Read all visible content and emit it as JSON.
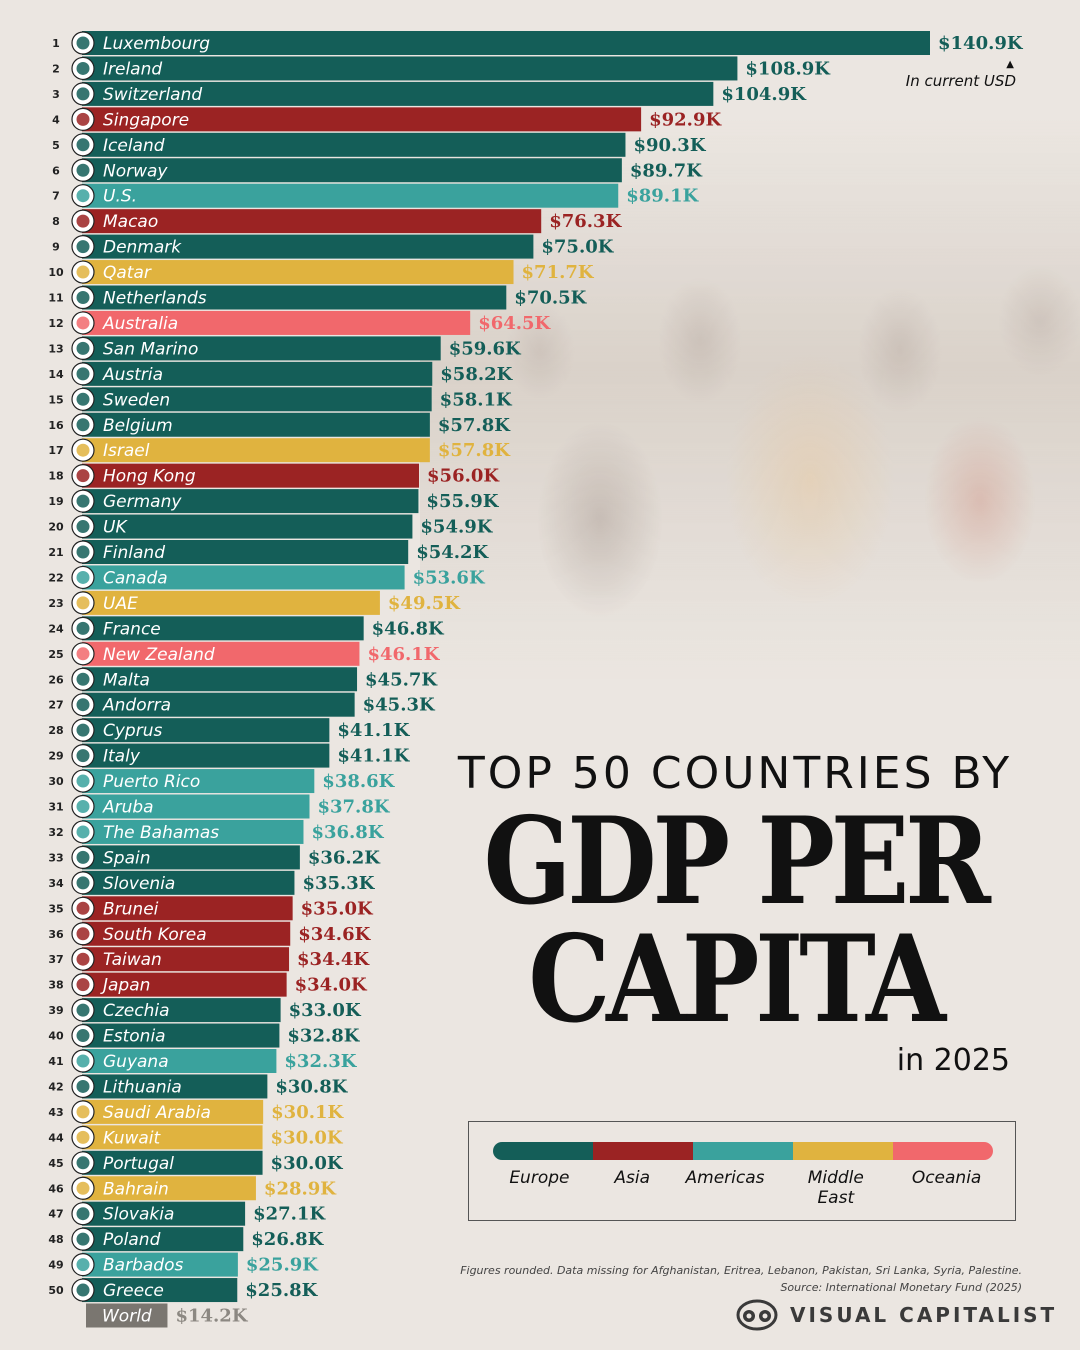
{
  "unit_note": "In current USD",
  "title": {
    "line1": "TOP 50 COUNTRIES BY",
    "line2": "GDP PER",
    "line3": "CAPITA",
    "year": "in 2025"
  },
  "legend": {
    "items": [
      {
        "label": "Europe",
        "color": "#145e58"
      },
      {
        "label": "Asia",
        "color": "#9b2323"
      },
      {
        "label": "Americas",
        "color": "#3aa29d"
      },
      {
        "label": "Middle East",
        "color": "#e0b33f"
      },
      {
        "label": "Oceania",
        "color": "#f1686c"
      }
    ]
  },
  "footnote": {
    "line1": "Figures rounded. Data missing for Afghanistan, Eritrea, Lebanon, Pakistan, Sri Lanka, Syria, Palestine.",
    "line2": "Source: International Monetary Fund (2025)"
  },
  "brand": "VISUAL CAPITALIST",
  "colors": {
    "Europe": "#145e58",
    "Asia": "#9b2323",
    "Americas": "#3aa29d",
    "Middle East": "#e0b33f",
    "Oceania": "#f1686c",
    "World": "#7a7670",
    "World_label": "#8c8882"
  },
  "chart_data": {
    "type": "bar",
    "orientation": "horizontal",
    "unit": "In current USD",
    "title": "TOP 50 COUNTRIES BY GDP PER CAPITA in 2025",
    "rows": [
      {
        "rank": "1",
        "name": "Luxembourg",
        "value": 140.9,
        "label": "$140.9K",
        "region": "Europe"
      },
      {
        "rank": "2",
        "name": "Ireland",
        "value": 108.9,
        "label": "$108.9K",
        "region": "Europe"
      },
      {
        "rank": "3",
        "name": "Switzerland",
        "value": 104.9,
        "label": "$104.9K",
        "region": "Europe"
      },
      {
        "rank": "4",
        "name": "Singapore",
        "value": 92.9,
        "label": "$92.9K",
        "region": "Asia"
      },
      {
        "rank": "5",
        "name": "Iceland",
        "value": 90.3,
        "label": "$90.3K",
        "region": "Europe"
      },
      {
        "rank": "6",
        "name": "Norway",
        "value": 89.7,
        "label": "$89.7K",
        "region": "Europe"
      },
      {
        "rank": "7",
        "name": "U.S.",
        "value": 89.1,
        "label": "$89.1K",
        "region": "Americas"
      },
      {
        "rank": "8",
        "name": "Macao",
        "value": 76.3,
        "label": "$76.3K",
        "region": "Asia"
      },
      {
        "rank": "9",
        "name": "Denmark",
        "value": 75.0,
        "label": "$75.0K",
        "region": "Europe"
      },
      {
        "rank": "10",
        "name": "Qatar",
        "value": 71.7,
        "label": "$71.7K",
        "region": "Middle East"
      },
      {
        "rank": "11",
        "name": "Netherlands",
        "value": 70.5,
        "label": "$70.5K",
        "region": "Europe"
      },
      {
        "rank": "12",
        "name": "Australia",
        "value": 64.5,
        "label": "$64.5K",
        "region": "Oceania"
      },
      {
        "rank": "13",
        "name": "San Marino",
        "value": 59.6,
        "label": "$59.6K",
        "region": "Europe"
      },
      {
        "rank": "14",
        "name": "Austria",
        "value": 58.2,
        "label": "$58.2K",
        "region": "Europe"
      },
      {
        "rank": "15",
        "name": "Sweden",
        "value": 58.1,
        "label": "$58.1K",
        "region": "Europe"
      },
      {
        "rank": "16",
        "name": "Belgium",
        "value": 57.8,
        "label": "$57.8K",
        "region": "Europe"
      },
      {
        "rank": "17",
        "name": "Israel",
        "value": 57.8,
        "label": "$57.8K",
        "region": "Middle East"
      },
      {
        "rank": "18",
        "name": "Hong Kong",
        "value": 56.0,
        "label": "$56.0K",
        "region": "Asia"
      },
      {
        "rank": "19",
        "name": "Germany",
        "value": 55.9,
        "label": "$55.9K",
        "region": "Europe"
      },
      {
        "rank": "20",
        "name": "UK",
        "value": 54.9,
        "label": "$54.9K",
        "region": "Europe"
      },
      {
        "rank": "21",
        "name": "Finland",
        "value": 54.2,
        "label": "$54.2K",
        "region": "Europe"
      },
      {
        "rank": "22",
        "name": "Canada",
        "value": 53.6,
        "label": "$53.6K",
        "region": "Americas"
      },
      {
        "rank": "23",
        "name": "UAE",
        "value": 49.5,
        "label": "$49.5K",
        "region": "Middle East"
      },
      {
        "rank": "24",
        "name": "France",
        "value": 46.8,
        "label": "$46.8K",
        "region": "Europe"
      },
      {
        "rank": "25",
        "name": "New Zealand",
        "value": 46.1,
        "label": "$46.1K",
        "region": "Oceania"
      },
      {
        "rank": "26",
        "name": "Malta",
        "value": 45.7,
        "label": "$45.7K",
        "region": "Europe"
      },
      {
        "rank": "27",
        "name": "Andorra",
        "value": 45.3,
        "label": "$45.3K",
        "region": "Europe"
      },
      {
        "rank": "28",
        "name": "Cyprus",
        "value": 41.1,
        "label": "$41.1K",
        "region": "Europe"
      },
      {
        "rank": "29",
        "name": "Italy",
        "value": 41.1,
        "label": "$41.1K",
        "region": "Europe"
      },
      {
        "rank": "30",
        "name": "Puerto Rico",
        "value": 38.6,
        "label": "$38.6K",
        "region": "Americas"
      },
      {
        "rank": "31",
        "name": "Aruba",
        "value": 37.8,
        "label": "$37.8K",
        "region": "Americas"
      },
      {
        "rank": "32",
        "name": "The Bahamas",
        "value": 36.8,
        "label": "$36.8K",
        "region": "Americas"
      },
      {
        "rank": "33",
        "name": "Spain",
        "value": 36.2,
        "label": "$36.2K",
        "region": "Europe"
      },
      {
        "rank": "34",
        "name": "Slovenia",
        "value": 35.3,
        "label": "$35.3K",
        "region": "Europe"
      },
      {
        "rank": "35",
        "name": "Brunei",
        "value": 35.0,
        "label": "$35.0K",
        "region": "Asia"
      },
      {
        "rank": "36",
        "name": "South Korea",
        "value": 34.6,
        "label": "$34.6K",
        "region": "Asia"
      },
      {
        "rank": "37",
        "name": "Taiwan",
        "value": 34.4,
        "label": "$34.4K",
        "region": "Asia"
      },
      {
        "rank": "38",
        "name": "Japan",
        "value": 34.0,
        "label": "$34.0K",
        "region": "Asia"
      },
      {
        "rank": "39",
        "name": "Czechia",
        "value": 33.0,
        "label": "$33.0K",
        "region": "Europe"
      },
      {
        "rank": "40",
        "name": "Estonia",
        "value": 32.8,
        "label": "$32.8K",
        "region": "Europe"
      },
      {
        "rank": "41",
        "name": "Guyana",
        "value": 32.3,
        "label": "$32.3K",
        "region": "Americas"
      },
      {
        "rank": "42",
        "name": "Lithuania",
        "value": 30.8,
        "label": "$30.8K",
        "region": "Europe"
      },
      {
        "rank": "43",
        "name": "Saudi Arabia",
        "value": 30.1,
        "label": "$30.1K",
        "region": "Middle East"
      },
      {
        "rank": "44",
        "name": "Kuwait",
        "value": 30.0,
        "label": "$30.0K",
        "region": "Middle East"
      },
      {
        "rank": "45",
        "name": "Portugal",
        "value": 30.0,
        "label": "$30.0K",
        "region": "Europe"
      },
      {
        "rank": "46",
        "name": "Bahrain",
        "value": 28.9,
        "label": "$28.9K",
        "region": "Middle East"
      },
      {
        "rank": "47",
        "name": "Slovakia",
        "value": 27.1,
        "label": "$27.1K",
        "region": "Europe"
      },
      {
        "rank": "48",
        "name": "Poland",
        "value": 26.8,
        "label": "$26.8K",
        "region": "Europe"
      },
      {
        "rank": "49",
        "name": "Barbados",
        "value": 25.9,
        "label": "$25.9K",
        "region": "Americas"
      },
      {
        "rank": "50",
        "name": "Greece",
        "value": 25.8,
        "label": "$25.8K",
        "region": "Europe"
      },
      {
        "rank": "",
        "name": "World",
        "value": 14.2,
        "label": "$14.2K",
        "region": "World"
      }
    ],
    "flag_icons": {
      "Luxembourg": "luxembourg-flag-icon",
      "Ireland": "ireland-flag-icon",
      "Switzerland": "switzerland-flag-icon",
      "Singapore": "singapore-flag-icon",
      "Iceland": "iceland-flag-icon",
      "Norway": "norway-flag-icon",
      "U.S.": "us-flag-icon",
      "Macao": "macao-flag-icon",
      "Denmark": "denmark-flag-icon",
      "Qatar": "qatar-flag-icon",
      "Netherlands": "netherlands-flag-icon",
      "Australia": "australia-flag-icon",
      "San Marino": "san-marino-flag-icon",
      "Austria": "austria-flag-icon",
      "Sweden": "sweden-flag-icon",
      "Belgium": "belgium-flag-icon",
      "Israel": "israel-flag-icon",
      "Hong Kong": "hong-kong-flag-icon",
      "Germany": "germany-flag-icon",
      "UK": "uk-flag-icon",
      "Finland": "finland-flag-icon",
      "Canada": "canada-flag-icon",
      "UAE": "uae-flag-icon",
      "France": "france-flag-icon",
      "New Zealand": "new-zealand-flag-icon",
      "Malta": "malta-flag-icon",
      "Andorra": "andorra-flag-icon",
      "Cyprus": "cyprus-flag-icon",
      "Italy": "italy-flag-icon",
      "Puerto Rico": "puerto-rico-flag-icon",
      "Aruba": "aruba-flag-icon",
      "The Bahamas": "bahamas-flag-icon",
      "Spain": "spain-flag-icon",
      "Slovenia": "slovenia-flag-icon",
      "Brunei": "brunei-flag-icon",
      "South Korea": "south-korea-flag-icon",
      "Taiwan": "taiwan-flag-icon",
      "Japan": "japan-flag-icon",
      "Czechia": "czechia-flag-icon",
      "Estonia": "estonia-flag-icon",
      "Guyana": "guyana-flag-icon",
      "Lithuania": "lithuania-flag-icon",
      "Saudi Arabia": "saudi-arabia-flag-icon",
      "Kuwait": "kuwait-flag-icon",
      "Portugal": "portugal-flag-icon",
      "Bahrain": "bahrain-flag-icon",
      "Slovakia": "slovakia-flag-icon",
      "Poland": "poland-flag-icon",
      "Barbados": "barbados-flag-icon",
      "Greece": "greece-flag-icon"
    }
  }
}
